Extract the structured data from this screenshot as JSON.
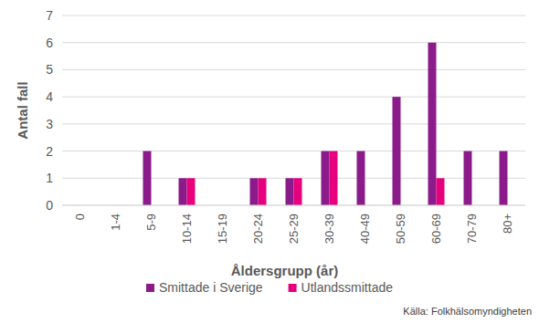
{
  "chart_data": {
    "type": "bar",
    "x_label": "Åldersgrupp (år)",
    "y_label": "Antal fall",
    "source": "Källa: Folkhälsomyndigheten",
    "categories": [
      "0",
      "1-4",
      "5-9",
      "10-14",
      "15-19",
      "20-24",
      "25-29",
      "30-39",
      "40-49",
      "50-59",
      "60-69",
      "70-79",
      "80+"
    ],
    "series": [
      {
        "name": "Smittade i Sverige",
        "color": "#8b1a8a",
        "values": [
          0,
          0,
          2,
          1,
          0,
          1,
          1,
          2,
          2,
          4,
          6,
          2,
          2
        ]
      },
      {
        "name": "Utlandssmittade",
        "color": "#e6007e",
        "values": [
          0,
          0,
          0,
          1,
          0,
          1,
          1,
          2,
          0,
          0,
          1,
          0,
          0
        ]
      }
    ],
    "ylim": [
      0,
      7
    ],
    "yticks": [
      0,
      1,
      2,
      3,
      4,
      5,
      6,
      7
    ],
    "grid": true,
    "legend": "bottom"
  }
}
